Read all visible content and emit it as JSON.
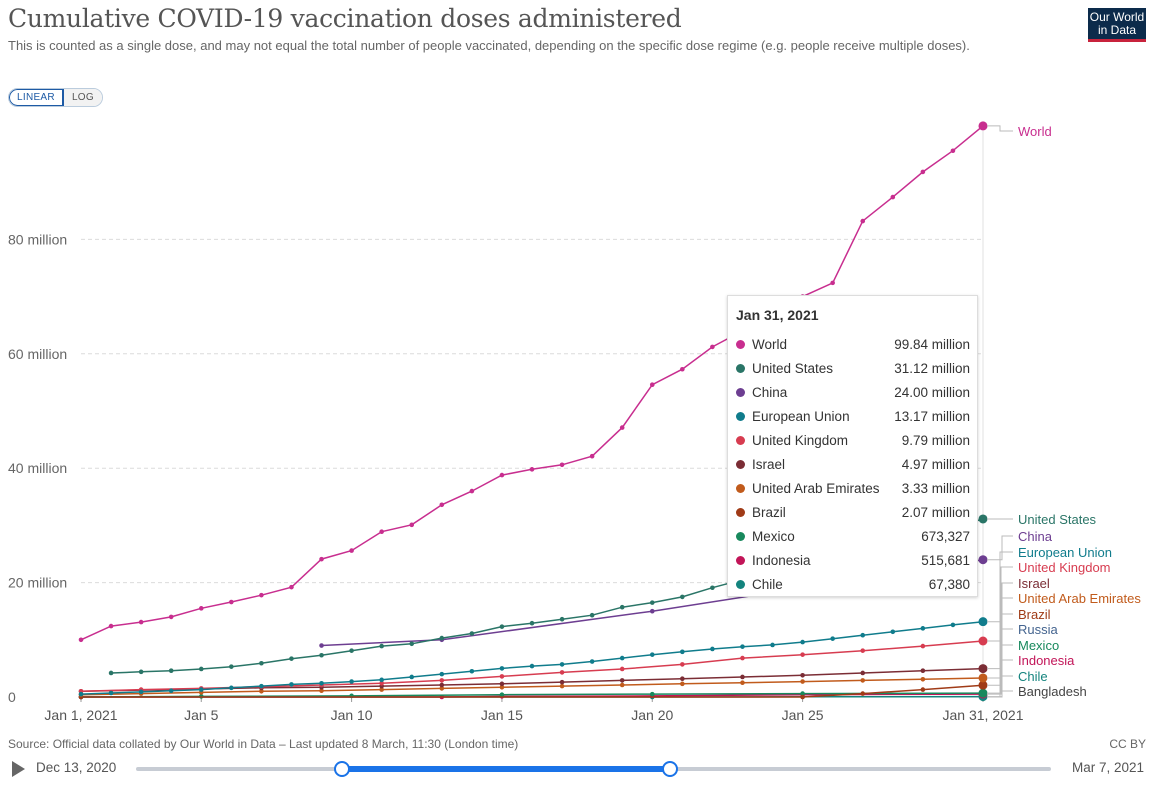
{
  "header": {
    "title": "Cumulative COVID-19 vaccination doses administered",
    "subtitle": "This is counted as a single dose, and may not equal the total number of people vaccinated, depending on the specific dose regime (e.g. people receive multiple doses).",
    "logo_line1": "Our World",
    "logo_line2": "in Data"
  },
  "controls": {
    "linear_label": "LINEAR",
    "log_label": "LOG",
    "selected": "LINEAR"
  },
  "chart_data": {
    "type": "line",
    "title": "Cumulative COVID-19 vaccination doses administered",
    "xlabel": "",
    "ylabel": "",
    "x_tick_labels": [
      "Jan 1, 2021",
      "Jan 5",
      "Jan 10",
      "Jan 15",
      "Jan 20",
      "Jan 25",
      "Jan 31, 2021"
    ],
    "x_tick_days": [
      1,
      5,
      10,
      15,
      20,
      25,
      31
    ],
    "x_range": [
      "2021-01-01",
      "2021-01-31"
    ],
    "y_tick_labels": [
      "0",
      "20 million",
      "40 million",
      "60 million",
      "80 million"
    ],
    "y_ticks": [
      0,
      20000000,
      40000000,
      60000000,
      80000000
    ],
    "ylim": [
      0,
      100000000
    ],
    "grid": "horizontal-dashed",
    "legend": "right-end-labels",
    "series": [
      {
        "name": "World",
        "color": "#c82e8f",
        "x": [
          1,
          2,
          3,
          4,
          5,
          6,
          7,
          8,
          9,
          10,
          11,
          12,
          13,
          14,
          15,
          16,
          17,
          18,
          19,
          20,
          21,
          22,
          23,
          24,
          25,
          26,
          27,
          28,
          29,
          30,
          31
        ],
        "y": [
          10000000,
          12400000,
          13100000,
          14000000,
          15500000,
          16600000,
          17800000,
          19200000,
          24100000,
          25600000,
          28900000,
          30100000,
          33600000,
          36000000,
          38800000,
          39800000,
          40600000,
          42100000,
          47100000,
          54600000,
          57300000,
          61200000,
          64000000,
          67100000,
          70000000,
          72400000,
          83200000,
          87400000,
          91800000,
          95500000,
          99840000
        ]
      },
      {
        "name": "United States",
        "color": "#2a7567",
        "x": [
          2,
          3,
          4,
          5,
          6,
          7,
          8,
          9,
          10,
          11,
          12,
          13,
          14,
          15,
          16,
          17,
          18,
          19,
          20,
          21,
          22,
          23,
          24,
          25,
          26,
          27,
          28,
          29,
          30,
          31
        ],
        "y": [
          4200000,
          4400000,
          4600000,
          4900000,
          5300000,
          5900000,
          6700000,
          7300000,
          8100000,
          8900000,
          9300000,
          10300000,
          11100000,
          12300000,
          12900000,
          13600000,
          14300000,
          15700000,
          16500000,
          17500000,
          19100000,
          20500000,
          21800000,
          23500000,
          24600000,
          25200000,
          26200000,
          27900000,
          29600000,
          31120000
        ]
      },
      {
        "name": "China",
        "color": "#6d3e91",
        "x": [
          9,
          13,
          20,
          31
        ],
        "y": [
          9000000,
          10000000,
          15000000,
          24000000
        ]
      },
      {
        "name": "European Union",
        "color": "#107c8c",
        "x": [
          1,
          2,
          3,
          4,
          5,
          6,
          7,
          8,
          9,
          10,
          11,
          12,
          13,
          14,
          15,
          16,
          17,
          18,
          19,
          20,
          21,
          22,
          23,
          24,
          25,
          26,
          27,
          28,
          29,
          30,
          31
        ],
        "y": [
          500000,
          700000,
          900000,
          1100000,
          1300000,
          1600000,
          1900000,
          2200000,
          2400000,
          2700000,
          3000000,
          3500000,
          4000000,
          4500000,
          5000000,
          5400000,
          5700000,
          6200000,
          6800000,
          7400000,
          7900000,
          8400000,
          8800000,
          9100000,
          9600000,
          10200000,
          10800000,
          11400000,
          12000000,
          12600000,
          13170000
        ]
      },
      {
        "name": "United Kingdom",
        "color": "#d73c50",
        "x": [
          1,
          3,
          5,
          7,
          9,
          11,
          13,
          15,
          17,
          19,
          21,
          23,
          25,
          27,
          29,
          31
        ],
        "y": [
          1000000,
          1300000,
          1500000,
          1800000,
          2100000,
          2400000,
          2900000,
          3600000,
          4300000,
          4900000,
          5700000,
          6800000,
          7400000,
          8100000,
          8900000,
          9790000
        ]
      },
      {
        "name": "Israel",
        "color": "#7b2d35",
        "x": [
          1,
          3,
          5,
          7,
          9,
          11,
          13,
          15,
          17,
          19,
          21,
          23,
          25,
          27,
          29,
          31
        ],
        "y": [
          1000000,
          1200000,
          1400000,
          1600000,
          1700000,
          1900000,
          2100000,
          2300000,
          2600000,
          2900000,
          3200000,
          3500000,
          3800000,
          4200000,
          4600000,
          4970000
        ]
      },
      {
        "name": "United Arab Emirates",
        "color": "#c15b1c",
        "x": [
          1,
          3,
          5,
          7,
          9,
          11,
          13,
          15,
          17,
          19,
          21,
          23,
          25,
          27,
          29,
          31
        ],
        "y": [
          400000,
          600000,
          800000,
          1000000,
          1100000,
          1300000,
          1500000,
          1700000,
          1900000,
          2100000,
          2300000,
          2500000,
          2700000,
          2900000,
          3100000,
          3330000
        ]
      },
      {
        "name": "Brazil",
        "color": "#a03b17",
        "x": [
          1,
          25,
          27,
          29,
          31
        ],
        "y": [
          0,
          0,
          600000,
          1300000,
          2070000
        ]
      },
      {
        "name": "Mexico",
        "color": "#18895d",
        "x": [
          1,
          5,
          10,
          15,
          20,
          25,
          31
        ],
        "y": [
          0,
          100000,
          200000,
          400000,
          500000,
          600000,
          673327
        ]
      },
      {
        "name": "Indonesia",
        "color": "#c21558",
        "x": [
          1,
          13,
          15,
          20,
          25,
          31
        ],
        "y": [
          0,
          0,
          100000,
          200000,
          400000,
          515681
        ]
      },
      {
        "name": "Chile",
        "color": "#14847e",
        "x": [
          1,
          20,
          25,
          31
        ],
        "y": [
          0,
          0,
          30000,
          67380
        ]
      },
      {
        "name": "Russia",
        "color": "#44648f",
        "x": [],
        "y": []
      },
      {
        "name": "Bangladesh",
        "color": "#444444",
        "x": [],
        "y": []
      }
    ]
  },
  "end_labels": [
    {
      "name": "World",
      "color": "#c82e8f"
    },
    {
      "name": "United States",
      "color": "#2a7567"
    },
    {
      "name": "China",
      "color": "#6d3e91"
    },
    {
      "name": "European Union",
      "color": "#107c8c"
    },
    {
      "name": "United Kingdom",
      "color": "#d73c50"
    },
    {
      "name": "Israel",
      "color": "#7b2d35"
    },
    {
      "name": "United Arab Emirates",
      "color": "#c15b1c"
    },
    {
      "name": "Brazil",
      "color": "#a03b17"
    },
    {
      "name": "Russia",
      "color": "#44648f"
    },
    {
      "name": "Mexico",
      "color": "#18895d"
    },
    {
      "name": "Indonesia",
      "color": "#c21558"
    },
    {
      "name": "Chile",
      "color": "#14847e"
    },
    {
      "name": "Bangladesh",
      "color": "#444444"
    }
  ],
  "tooltip": {
    "date": "Jan 31, 2021",
    "rows": [
      {
        "name": "World",
        "value": "99.84 million",
        "color": "#c82e8f"
      },
      {
        "name": "United States",
        "value": "31.12 million",
        "color": "#2a7567"
      },
      {
        "name": "China",
        "value": "24.00 million",
        "color": "#6d3e91"
      },
      {
        "name": "European Union",
        "value": "13.17 million",
        "color": "#107c8c"
      },
      {
        "name": "United Kingdom",
        "value": "9.79 million",
        "color": "#d73c50"
      },
      {
        "name": "Israel",
        "value": "4.97 million",
        "color": "#7b2d35"
      },
      {
        "name": "United Arab Emirates",
        "value": "3.33 million",
        "color": "#c15b1c"
      },
      {
        "name": "Brazil",
        "value": "2.07 million",
        "color": "#a03b17"
      },
      {
        "name": "Mexico",
        "value": "673,327",
        "color": "#18895d"
      },
      {
        "name": "Indonesia",
        "value": "515,681",
        "color": "#c21558"
      },
      {
        "name": "Chile",
        "value": "67,380",
        "color": "#14847e"
      }
    ]
  },
  "footer": {
    "source": "Source: Official data collated by Our World in Data – Last updated 8 March, 11:30 (London time)",
    "license": "CC BY"
  },
  "timeline": {
    "start_label": "Dec 13, 2020",
    "end_label": "Mar 7, 2021",
    "selected_start": "2021-01-01",
    "selected_end": "2021-01-31"
  }
}
